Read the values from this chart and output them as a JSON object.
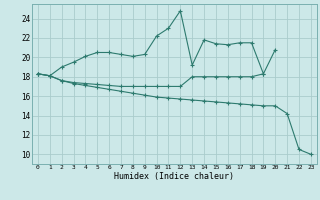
{
  "xlabel": "Humidex (Indice chaleur)",
  "bg_color": "#cce8e8",
  "grid_color": "#aacccc",
  "line_color": "#2d7a6e",
  "xlim": [
    -0.5,
    23.5
  ],
  "ylim": [
    9.0,
    25.5
  ],
  "yticks": [
    10,
    12,
    14,
    16,
    18,
    20,
    22,
    24
  ],
  "xticks": [
    0,
    1,
    2,
    3,
    4,
    5,
    6,
    7,
    8,
    9,
    10,
    11,
    12,
    13,
    14,
    15,
    16,
    17,
    18,
    19,
    20,
    21,
    22,
    23
  ],
  "series1_x": [
    0,
    1,
    2,
    3,
    4,
    5,
    6,
    7,
    8,
    9,
    10,
    11,
    12,
    13,
    14,
    15,
    16,
    17,
    18,
    19,
    20
  ],
  "series1_y": [
    18.3,
    18.1,
    19.0,
    19.5,
    20.1,
    20.5,
    20.5,
    20.3,
    20.1,
    20.3,
    22.2,
    23.0,
    24.8,
    19.2,
    21.8,
    21.4,
    21.3,
    21.5,
    21.5,
    18.3,
    20.8
  ],
  "series2_x": [
    0,
    1,
    2,
    3,
    4,
    5,
    6,
    7,
    8,
    9,
    10,
    11,
    12,
    13,
    14,
    15,
    16,
    17,
    18,
    19
  ],
  "series2_y": [
    18.3,
    18.1,
    17.6,
    17.4,
    17.3,
    17.2,
    17.1,
    17.0,
    17.0,
    17.0,
    17.0,
    17.0,
    17.0,
    18.0,
    18.0,
    18.0,
    18.0,
    18.0,
    18.0,
    18.3
  ],
  "series3_x": [
    0,
    1,
    2,
    3,
    4,
    5,
    6,
    7,
    8,
    9,
    10,
    11,
    12,
    13,
    14,
    15,
    16,
    17,
    18,
    19,
    20,
    21,
    22,
    23
  ],
  "series3_y": [
    18.3,
    18.1,
    17.6,
    17.3,
    17.1,
    16.9,
    16.7,
    16.5,
    16.3,
    16.1,
    15.9,
    15.8,
    15.7,
    15.6,
    15.5,
    15.4,
    15.3,
    15.2,
    15.1,
    15.0,
    15.0,
    14.2,
    10.5,
    10.0
  ]
}
